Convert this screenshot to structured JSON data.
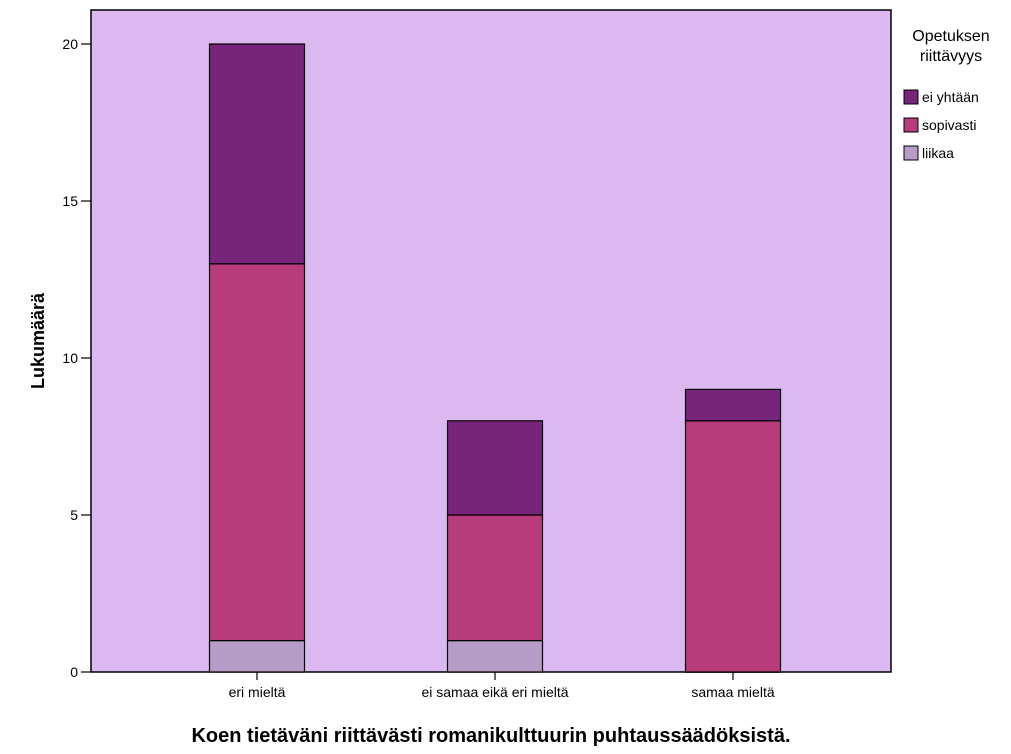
{
  "chart_data": {
    "type": "bar",
    "stacked": true,
    "categories": [
      "eri mieltä",
      "ei samaa eikä eri mieltä",
      "samaa mieltä"
    ],
    "series": [
      {
        "name": "liikaa",
        "values": [
          1,
          1,
          0
        ],
        "color": "#b89cc8"
      },
      {
        "name": "sopivasti",
        "values": [
          12,
          4,
          8
        ],
        "color": "#b83c7c"
      },
      {
        "name": "ei yhtään",
        "values": [
          7,
          3,
          1
        ],
        "color": "#76257a"
      }
    ],
    "xlabel": "Koen tietäväni riittävästi romanikulttuurin puhtaussäädöksistä.",
    "ylabel": "Lukumäärä",
    "ylim": [
      0,
      20
    ],
    "yticks": [
      "0",
      "5",
      "10",
      "15",
      "20"
    ],
    "legend": {
      "title_line1": "Opetuksen",
      "title_line2": "riittävyys",
      "position": "right",
      "order": [
        "ei yhtään",
        "sopivasti",
        "liikaa"
      ]
    },
    "plot_background": "#dbb9f0",
    "grid": false
  }
}
